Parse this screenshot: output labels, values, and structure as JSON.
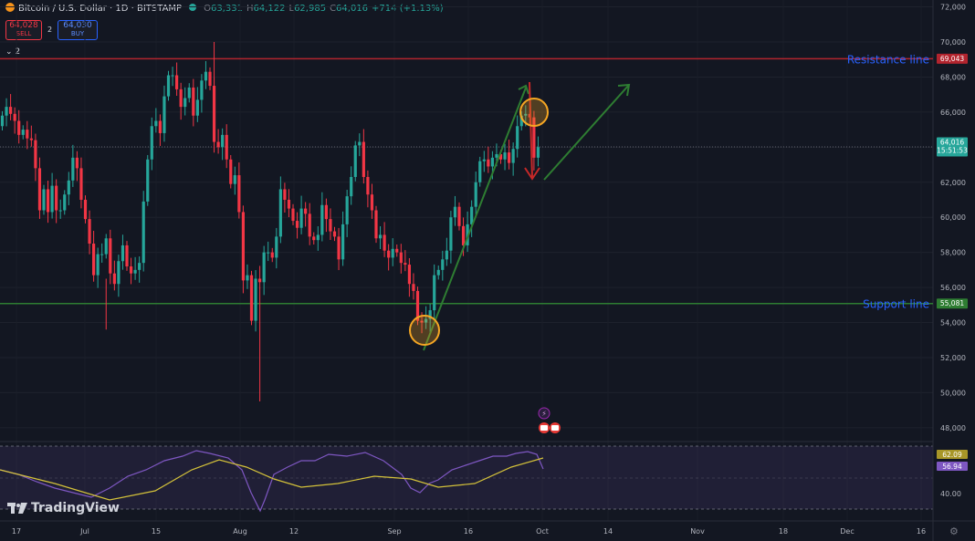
{
  "header": {
    "title": "Bitcoin / U.S. Dollar · 1D · BITSTAMP",
    "ohlc": [
      {
        "label": "O",
        "value": "63,331"
      },
      {
        "label": "H",
        "value": "64,122"
      },
      {
        "label": "L",
        "value": "62,985"
      },
      {
        "label": "C",
        "value": "64,016"
      }
    ],
    "change": "+714 (+1.13%)"
  },
  "trade": {
    "sell_price": "64,028",
    "sell_label": "SELL",
    "spread": "2",
    "buy_price": "64,030",
    "buy_label": "BUY"
  },
  "indicators_toggle": "2",
  "price_axis": {
    "ticks": [
      "72,000",
      "70,000",
      "68,000",
      "66,000",
      "64,000",
      "62,000",
      "60,000",
      "58,000",
      "56,000",
      "54,000",
      "52,000",
      "50,000",
      "48,000"
    ],
    "current_price": "64,016",
    "countdown": "15:51:53",
    "resistance_price": "69,043",
    "support_price": "55,081"
  },
  "annotations": {
    "resistance_label": "Resistance line",
    "support_label": "Support line"
  },
  "rsi": {
    "value_label": "56.94",
    "ma_label": "62.09",
    "tick": "40.00"
  },
  "time_axis": [
    "17",
    "Jul",
    "15",
    "Aug",
    "12",
    "Sep",
    "16",
    "Oct",
    "14",
    "Nov",
    "18",
    "Dec",
    "16"
  ],
  "branding": "TradingView",
  "colors": {
    "background": "#131722",
    "up": "#26a69a",
    "down": "#f23645",
    "resistance": "#b2242e",
    "support": "#2e7d32",
    "annotation_text": "#2962ff",
    "rsi": "#7e57c2",
    "rsi_ma": "#d4c23a"
  },
  "chart_data": {
    "type": "candlestick",
    "title": "Bitcoin / U.S. Dollar · 1D · BITSTAMP",
    "y_range": [
      47000,
      72500
    ],
    "horizontal_lines": [
      {
        "label": "Resistance line",
        "price": 69043
      },
      {
        "label": "Support line",
        "price": 55081
      }
    ],
    "closes": [
      65800,
      66300,
      65900,
      65500,
      64700,
      65000,
      64500,
      64400,
      62800,
      60400,
      61600,
      60300,
      61800,
      60400,
      60400,
      61300,
      62100,
      63400,
      62800,
      61000,
      59900,
      58500,
      56700,
      57900,
      57900,
      58800,
      56800,
      56200,
      57500,
      58400,
      57200,
      56800,
      57000,
      57400,
      60900,
      63300,
      65200,
      65500,
      64800,
      66900,
      68100,
      68100,
      67300,
      66300,
      66800,
      67400,
      65800,
      66700,
      67800,
      68300,
      67500,
      64300,
      64000,
      64700,
      63300,
      61900,
      62400,
      60300,
      56400,
      56700,
      54100,
      56500,
      56300,
      58000,
      58000,
      57700,
      58900,
      61600,
      61000,
      60500,
      59800,
      59400,
      60500,
      60200,
      58900,
      58700,
      59000,
      60700,
      59900,
      59200,
      58900,
      57600,
      59600,
      61200,
      62300,
      64100,
      64300,
      62300,
      61300,
      60400,
      58800,
      59000,
      58100,
      57700,
      58200,
      58000,
      57400,
      57300,
      56200,
      55800,
      54100,
      54000,
      54200,
      54700,
      56700,
      57000,
      57600,
      58100,
      60000,
      60600,
      59500,
      58400,
      59600,
      60600,
      62000,
      63200,
      63300,
      62900,
      63400,
      63600,
      63300,
      63700,
      63100,
      63900,
      65200,
      65800,
      65900,
      65700,
      63400,
      64000
    ]
  }
}
